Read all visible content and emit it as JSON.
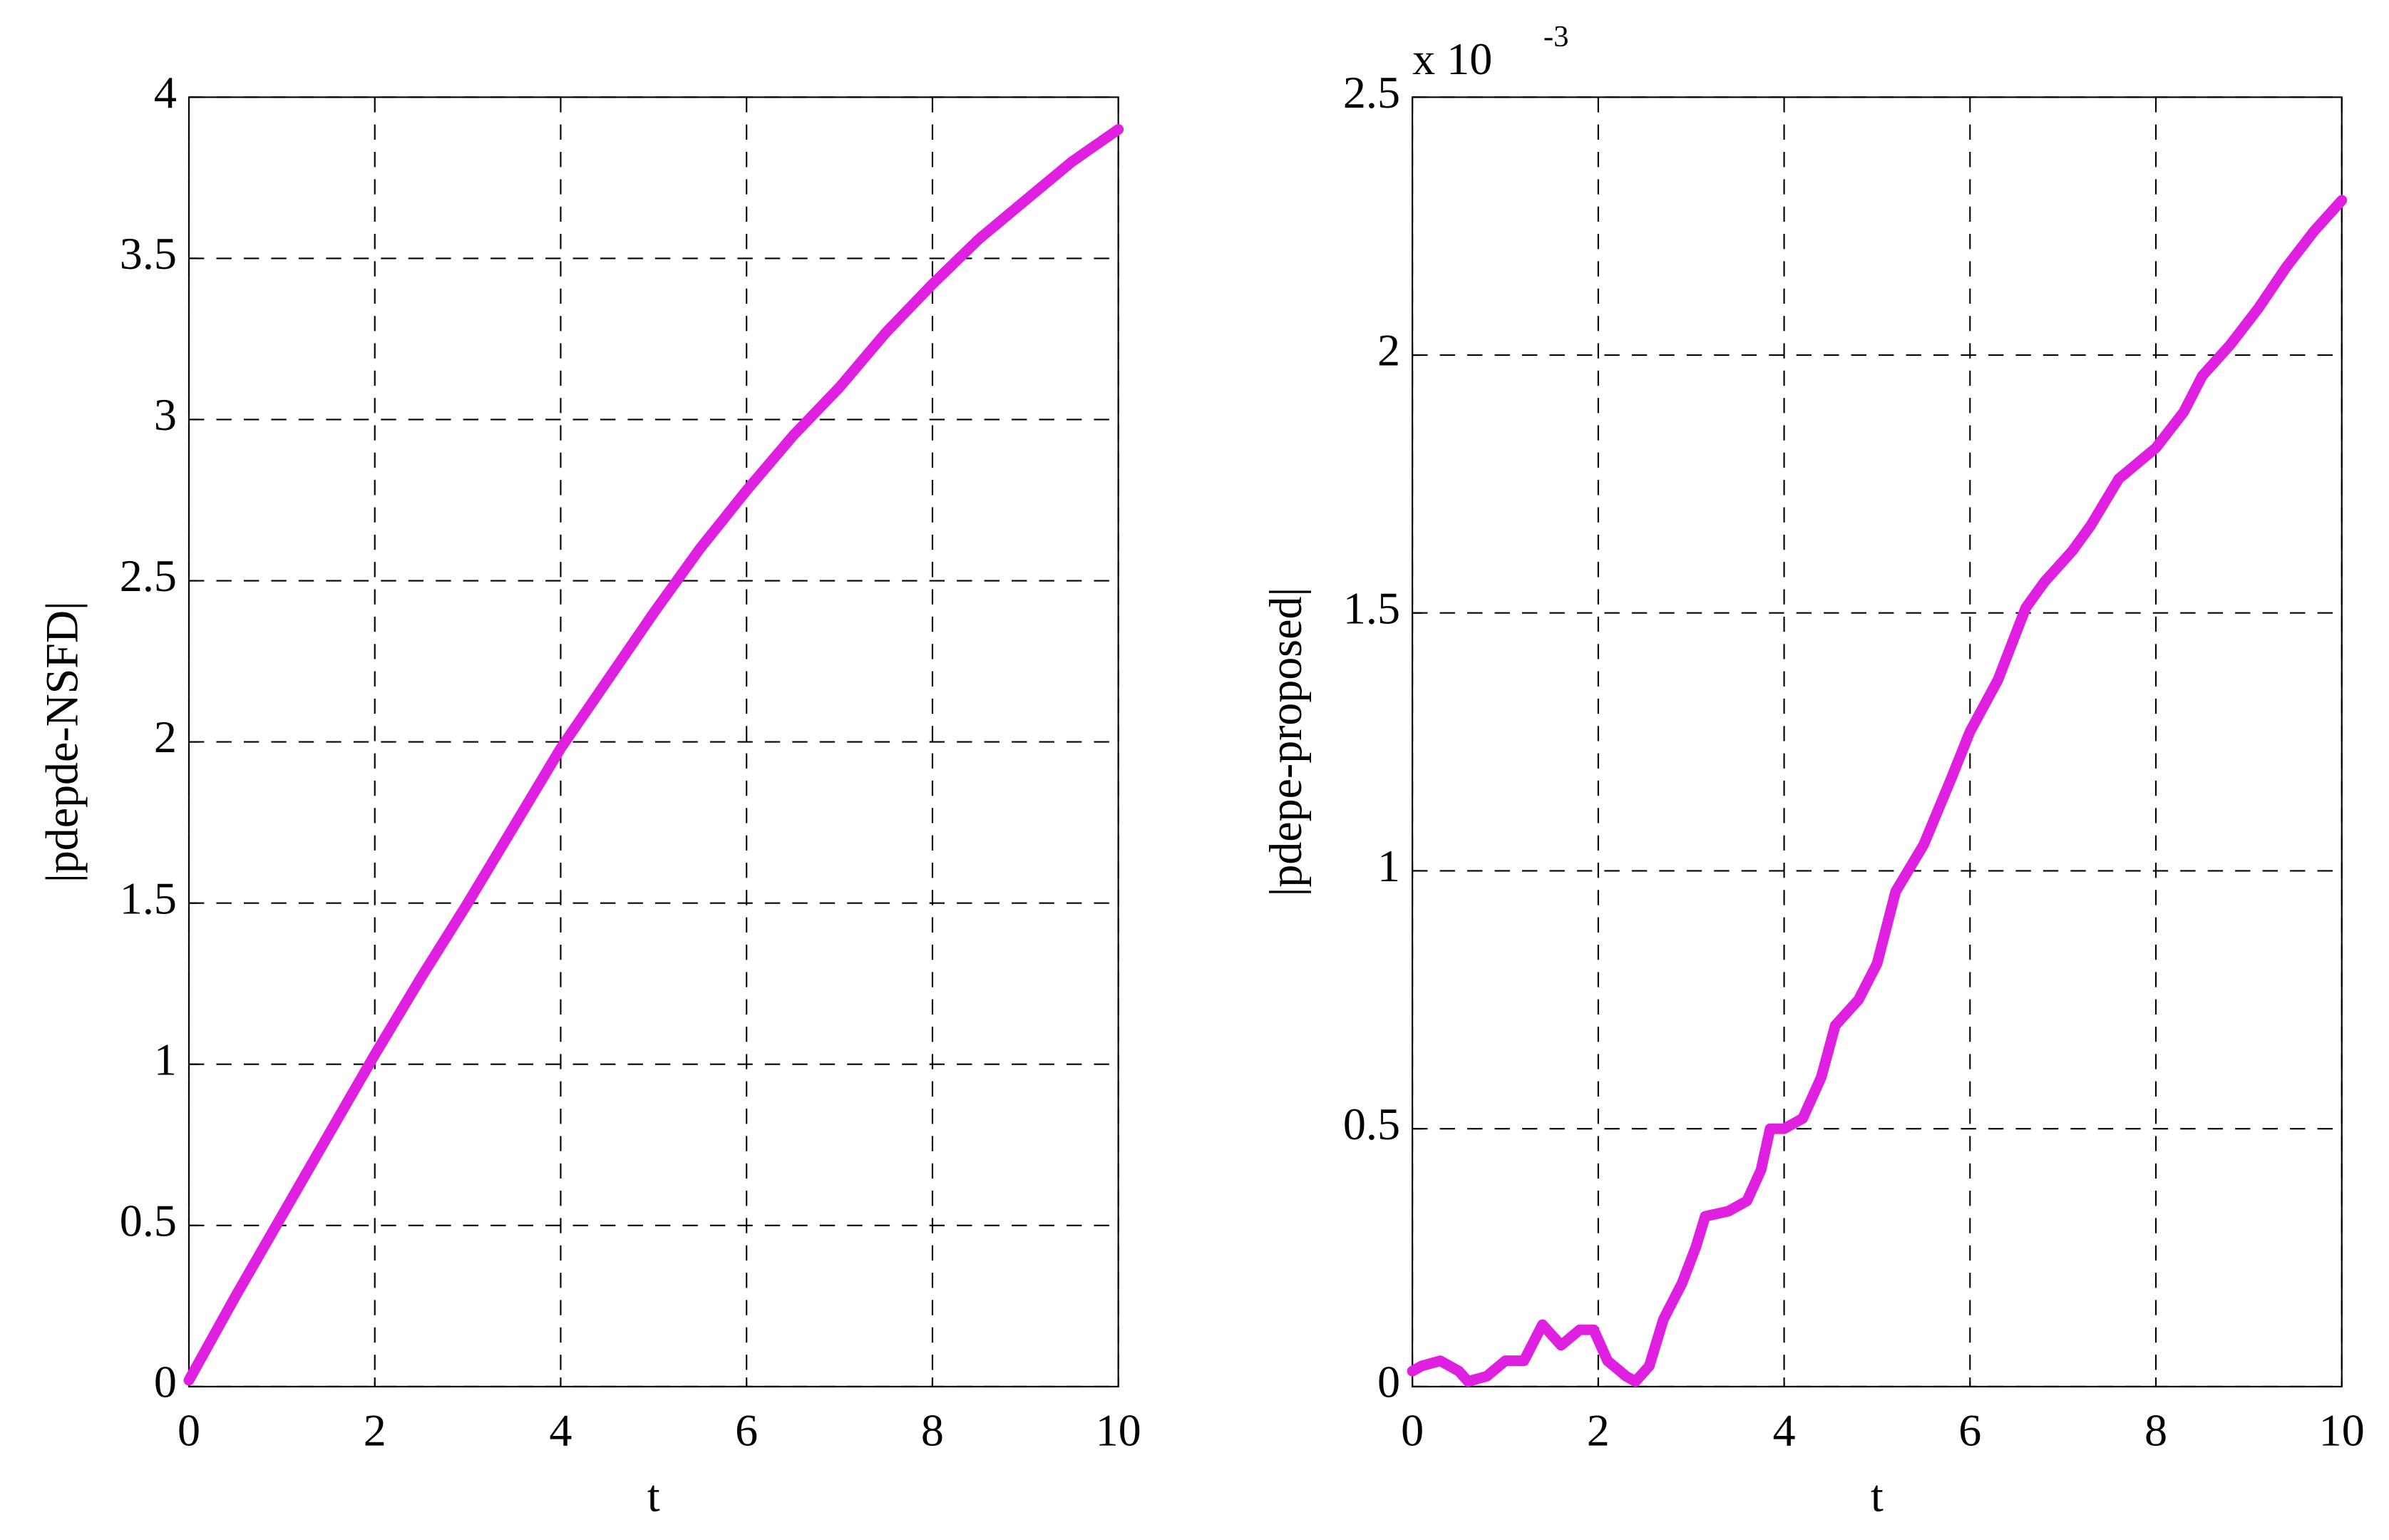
{
  "chart_data": [
    {
      "type": "line",
      "x_label": "t",
      "y_label": "|pdepde-NSFD|",
      "grid": true,
      "color": "#e020e0",
      "x": [
        0,
        0.5,
        1,
        1.5,
        2,
        2.5,
        3,
        3.5,
        4,
        4.5,
        5,
        5.5,
        6,
        6.5,
        7,
        7.5,
        8,
        8.5,
        9,
        9.5,
        10
      ],
      "values": [
        0.02,
        0.28,
        0.53,
        0.78,
        1.03,
        1.27,
        1.5,
        1.74,
        1.98,
        2.19,
        2.4,
        2.6,
        2.78,
        2.95,
        3.1,
        3.27,
        3.42,
        3.56,
        3.68,
        3.8,
        3.9
      ],
      "xlim": [
        0,
        10
      ],
      "xticks": [
        0,
        2,
        4,
        6,
        8,
        10
      ],
      "ylim": [
        0,
        4
      ],
      "yticks": [
        0,
        0.5,
        1,
        1.5,
        2,
        2.5,
        3,
        3.5,
        4
      ]
    },
    {
      "type": "line",
      "x_label": "t",
      "y_label": "|pdepe-proposed|",
      "y_multiplier": "x 10",
      "y_exponent": "-3",
      "grid": true,
      "color": "#e020e0",
      "x": [
        0,
        0.1,
        0.3,
        0.5,
        0.6,
        0.8,
        1.0,
        1.2,
        1.4,
        1.6,
        1.8,
        1.95,
        2.1,
        2.3,
        2.4,
        2.55,
        2.7,
        2.9,
        3.05,
        3.15,
        3.4,
        3.6,
        3.75,
        3.85,
        4.0,
        4.2,
        4.4,
        4.55,
        4.8,
        5.0,
        5.2,
        5.5,
        5.8,
        6.0,
        6.3,
        6.6,
        6.8,
        7.1,
        7.3,
        7.6,
        7.8,
        8.0,
        8.3,
        8.5,
        8.8,
        9.1,
        9.4,
        9.7,
        10
      ],
      "values": [
        0.03,
        0.04,
        0.05,
        0.03,
        0.01,
        0.02,
        0.05,
        0.05,
        0.12,
        0.08,
        0.11,
        0.11,
        0.05,
        0.02,
        0.01,
        0.04,
        0.13,
        0.2,
        0.27,
        0.33,
        0.34,
        0.36,
        0.42,
        0.5,
        0.5,
        0.52,
        0.6,
        0.7,
        0.75,
        0.82,
        0.96,
        1.05,
        1.18,
        1.27,
        1.37,
        1.51,
        1.56,
        1.62,
        1.67,
        1.76,
        1.79,
        1.82,
        1.89,
        1.96,
        2.02,
        2.09,
        2.17,
        2.24,
        2.3
      ],
      "xlim": [
        0,
        10
      ],
      "xticks": [
        0,
        2,
        4,
        6,
        8,
        10
      ],
      "ylim": [
        0,
        2.5
      ],
      "yticks": [
        0,
        0.5,
        1,
        1.5,
        2,
        2.5
      ]
    }
  ]
}
